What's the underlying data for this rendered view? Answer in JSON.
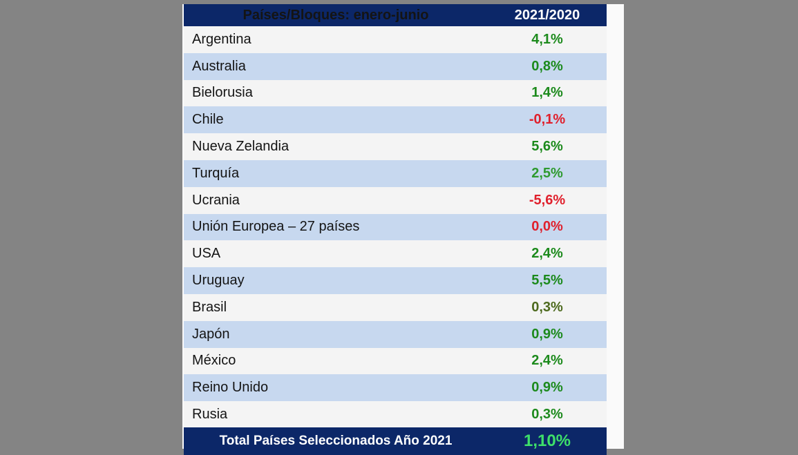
{
  "table": {
    "header": {
      "col1": "Países/Bloques: enero-junio",
      "col2": "2021/2020"
    },
    "rows": [
      {
        "country": "Argentina",
        "value": "4,1%",
        "color": "#1c8a1c"
      },
      {
        "country": "Australia",
        "value": "0,8%",
        "color": "#1c8a1c"
      },
      {
        "country": "Bielorusia",
        "value": "1,4%",
        "color": "#1c8a1c"
      },
      {
        "country": "Chile",
        "value": "-0,1%",
        "color": "#e0202c"
      },
      {
        "country": "Nueva Zelandia",
        "value": "5,6%",
        "color": "#1c8a1c"
      },
      {
        "country": "Turquía",
        "value": "2,5%",
        "color": "#2e9a2e"
      },
      {
        "country": "Ucrania",
        "value": "-5,6%",
        "color": "#e0202c"
      },
      {
        "country": "Unión Europea – 27 países",
        "value": "0,0%",
        "color": "#e0202c"
      },
      {
        "country": "USA",
        "value": "2,4%",
        "color": "#1c8a1c"
      },
      {
        "country": "Uruguay",
        "value": "5,5%",
        "color": "#1c8a1c"
      },
      {
        "country": "Brasil",
        "value": "0,3%",
        "color": "#4d6a1e"
      },
      {
        "country": "Japón",
        "value": "0,9%",
        "color": "#1c8a1c"
      },
      {
        "country": "México",
        "value": "2,4%",
        "color": "#1c8a1c"
      },
      {
        "country": "Reino Unido",
        "value": "0,9%",
        "color": "#1c8a1c"
      },
      {
        "country": "Rusia",
        "value": "0,3%",
        "color": "#1c8a1c"
      }
    ],
    "total": {
      "label": "Total Países Seleccionados Año 2021",
      "value": "1,10%",
      "color": "#3ee06a"
    }
  }
}
